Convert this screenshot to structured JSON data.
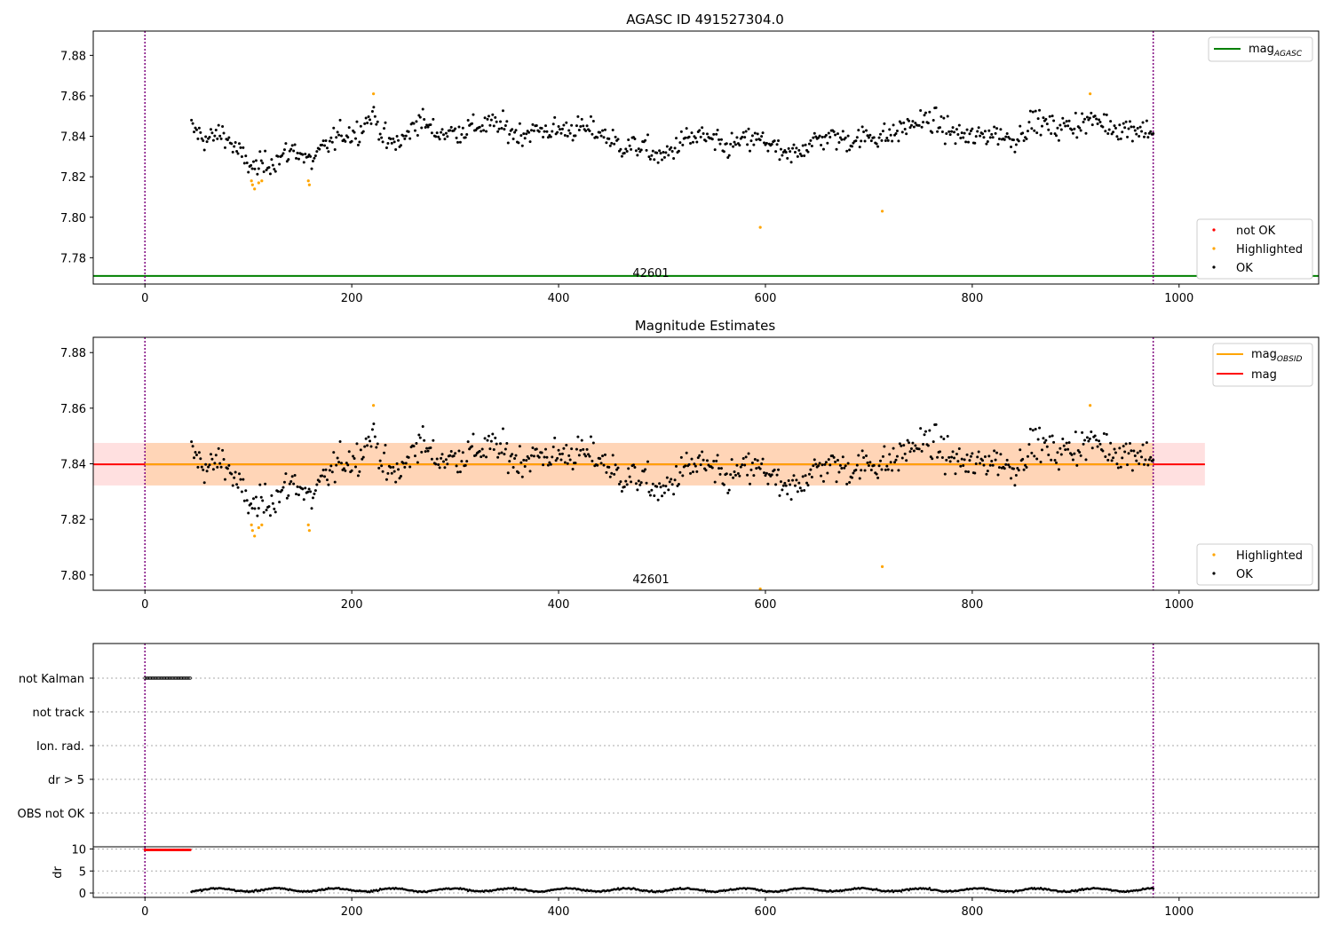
{
  "chart_data": [
    {
      "type": "scatter",
      "title": "AGASC ID 491527304.0",
      "xlim": [
        -50,
        1135
      ],
      "ylim": [
        7.767,
        7.892
      ],
      "xticks": [
        "0",
        "200",
        "400",
        "600",
        "800",
        "1000"
      ],
      "yticks": [
        "7.78",
        "7.80",
        "7.82",
        "7.84",
        "7.86",
        "7.88"
      ],
      "ytick_values": [
        7.78,
        7.8,
        7.82,
        7.84,
        7.86,
        7.88
      ],
      "obsid_label": "42601",
      "obsid_label_x": 490,
      "mag_agasc": 7.771,
      "obs_bounds_x": [
        0,
        975
      ],
      "legend_lines": [
        {
          "name": "mag",
          "sub": "AGASC",
          "color": "#008000"
        }
      ],
      "legend_points": [
        {
          "name": "not OK",
          "color": "#ff0000"
        },
        {
          "name": "Highlighted",
          "color": "#ffa500"
        },
        {
          "name": "OK",
          "color": "#000000"
        }
      ],
      "highlighted": [
        {
          "x": 103,
          "y": 7.818
        },
        {
          "x": 104,
          "y": 7.816
        },
        {
          "x": 106,
          "y": 7.814
        },
        {
          "x": 110,
          "y": 7.817
        },
        {
          "x": 113,
          "y": 7.818
        },
        {
          "x": 158,
          "y": 7.818
        },
        {
          "x": 159,
          "y": 7.816
        },
        {
          "x": 221,
          "y": 7.861
        },
        {
          "x": 595,
          "y": 7.795
        },
        {
          "x": 713,
          "y": 7.803
        },
        {
          "x": 914,
          "y": 7.861
        }
      ],
      "ok_trend": {
        "x": [
          45,
          60,
          75,
          90,
          105,
          115,
          130,
          145,
          160,
          175,
          190,
          205,
          220,
          235,
          250,
          265,
          280,
          300,
          320,
          340,
          360,
          380,
          400,
          420,
          440,
          460,
          480,
          500,
          520,
          540,
          560,
          580,
          600,
          620,
          640,
          660,
          680,
          700,
          720,
          740,
          760,
          780,
          800,
          820,
          840,
          860,
          880,
          900,
          920,
          940,
          960,
          975
        ],
        "y": [
          7.844,
          7.838,
          7.842,
          7.832,
          7.824,
          7.826,
          7.829,
          7.834,
          7.827,
          7.835,
          7.841,
          7.842,
          7.851,
          7.836,
          7.838,
          7.849,
          7.842,
          7.842,
          7.845,
          7.846,
          7.841,
          7.843,
          7.843,
          7.844,
          7.842,
          7.835,
          7.835,
          7.829,
          7.838,
          7.84,
          7.834,
          7.838,
          7.838,
          7.829,
          7.836,
          7.84,
          7.838,
          7.84,
          7.84,
          7.846,
          7.848,
          7.842,
          7.839,
          7.842,
          7.838,
          7.848,
          7.844,
          7.846,
          7.848,
          7.844,
          7.844,
          7.842
        ]
      }
    },
    {
      "type": "scatter",
      "title": "Magnitude Estimates",
      "xlim": [
        -50,
        1135
      ],
      "ylim": [
        7.7945,
        7.8855
      ],
      "xticks": [
        "0",
        "200",
        "400",
        "600",
        "800",
        "1000"
      ],
      "yticks": [
        "7.80",
        "7.82",
        "7.84",
        "7.86",
        "7.88"
      ],
      "ytick_values": [
        7.8,
        7.82,
        7.84,
        7.86,
        7.88
      ],
      "obsid_label": "42601",
      "obsid_label_x": 490,
      "mag_obsid": 7.8398,
      "mag": 7.8398,
      "mag_band": [
        7.8322,
        7.8475
      ],
      "mag_obsid_band": [
        7.8322,
        7.8475
      ],
      "band_x": [
        -50,
        1025
      ],
      "obsid_band_x": [
        0,
        975
      ],
      "obs_bounds_x": [
        0,
        975
      ],
      "legend_lines": [
        {
          "name": "mag",
          "sub": "OBSID",
          "color": "#ffa500"
        },
        {
          "name": "mag",
          "sub": "",
          "color": "#ff0000"
        }
      ],
      "legend_points": [
        {
          "name": "Highlighted",
          "color": "#ffa500"
        },
        {
          "name": "OK",
          "color": "#000000"
        }
      ]
    },
    {
      "type": "scatter",
      "xlim": [
        -50,
        1135
      ],
      "flag_rows": [
        "not Kalman",
        "not track",
        "Ion. rad.",
        "dr > 5",
        "OBS not OK"
      ],
      "not_kalman_x": [
        0,
        44
      ],
      "obs_bounds_x": [
        0,
        975
      ]
    },
    {
      "type": "scatter",
      "xlim": [
        -50,
        1135
      ],
      "ylim": [
        -1,
        10.5
      ],
      "ylabel": "dr",
      "xticks": [
        "0",
        "200",
        "400",
        "600",
        "800",
        "1000"
      ],
      "yticks": [
        "0",
        "5",
        "10"
      ],
      "ytick_values": [
        0,
        5,
        10
      ],
      "not_ok_x": [
        0,
        44
      ],
      "not_ok_y": 9.8,
      "ok_x": [
        45,
        975
      ],
      "ok_y_mean": 0.7,
      "obs_bounds_x": [
        0,
        975
      ]
    }
  ]
}
